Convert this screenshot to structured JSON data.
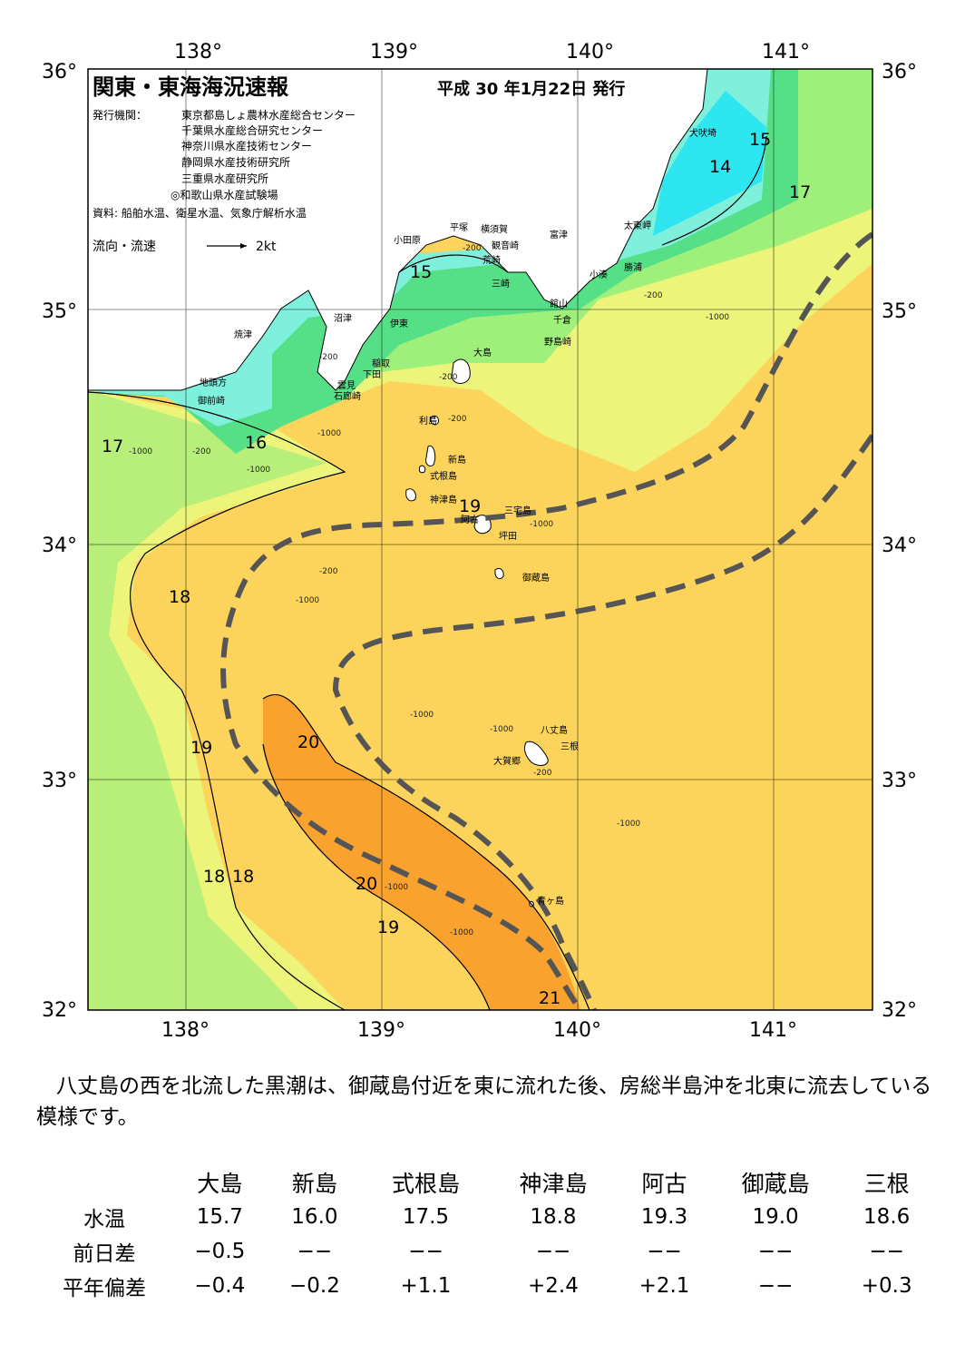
{
  "map": {
    "title": "関東・東海海況速報",
    "issue_date": "平成 30 年1月22日 発行",
    "publisher_label": "発行機関：",
    "publishers": [
      "東京都島しょ農林水産総合センター",
      "千葉県水産総合研究センター",
      "神奈川県水産技術センター",
      "静岡県水産技術研究所",
      "三重県水産研究所",
      "◎和歌山県水産試験場"
    ],
    "sources": "資料: 船舶水温、衛星水温、気象庁解析水温",
    "current_legend": "流向・流速",
    "current_scale": "2kt",
    "lon_labels": [
      "138°",
      "139°",
      "140°",
      "141°"
    ],
    "lat_labels": [
      "36°",
      "35°",
      "34°",
      "33°",
      "32°"
    ],
    "place_names": {
      "inubosaki": "犬吠埼",
      "taitomisaki": "太東岬",
      "katsuura": "勝浦",
      "kominato": "小湊",
      "tomitsu": "富津",
      "tateyama": "館山",
      "chikura": "千倉",
      "nojimazaki": "野島崎",
      "yokosuka": "横須賀",
      "kannonzaki": "観音崎",
      "arasaki": "荒崎",
      "misaki": "三崎",
      "hiratsuka": "平塚",
      "odawara": "小田原",
      "numazu": "沼津",
      "ito": "伊東",
      "yaizu": "焼津",
      "inatori": "稲取",
      "shimoda": "下田",
      "kumomi": "雲見",
      "irozaki": "石廊崎",
      "jitokata": "地頭方",
      "omaezaki": "御前崎",
      "oshima": "大島",
      "toshima": "利島",
      "niijima": "新島",
      "shikinejima": "式根島",
      "kozushima": "神津島",
      "miyakejima": "三宅島",
      "ako": "阿古",
      "tsubota": "坪田",
      "mikurajima": "御蔵島",
      "hachijojima": "八丈島",
      "mine": "三根",
      "okago": "大賀郷",
      "aogashima": "青ヶ島"
    },
    "isotherm_labels": [
      "15",
      "14",
      "15",
      "17",
      "16",
      "17",
      "19",
      "18",
      "19",
      "20",
      "18",
      "18",
      "20",
      "19",
      "21"
    ],
    "depth_labels": [
      "-200",
      "-1000"
    ]
  },
  "commentary": "八丈島の西を北流した黒潮は、御蔵島付近を東に流れた後、房総半島沖を北東に流去している模様です。",
  "table": {
    "columns": [
      "大島",
      "新島",
      "式根島",
      "神津島",
      "阿古",
      "御蔵島",
      "三根"
    ],
    "rows": [
      {
        "label": "水温",
        "values": [
          "15.7",
          "16.0",
          "17.5",
          "18.8",
          "19.3",
          "19.0",
          "18.6"
        ]
      },
      {
        "label": "前日差",
        "values": [
          "−0.5",
          "−−",
          "−−",
          "−−",
          "−−",
          "−−",
          "−−"
        ]
      },
      {
        "label": "平年偏差",
        "values": [
          "−0.4",
          "−0.2",
          "+1.1",
          "+2.4",
          "+2.1",
          "−−",
          "+0.3"
        ]
      }
    ]
  },
  "colors": {
    "t14": "#2ee6f0",
    "t15": "#7ff0dc",
    "t16": "#55e088",
    "t17": "#9ff07a",
    "t18": "#ecf57a",
    "t19": "#fcd45c",
    "t20": "#faa22e",
    "land": "#ffffff",
    "kuroshio": "#555555"
  }
}
